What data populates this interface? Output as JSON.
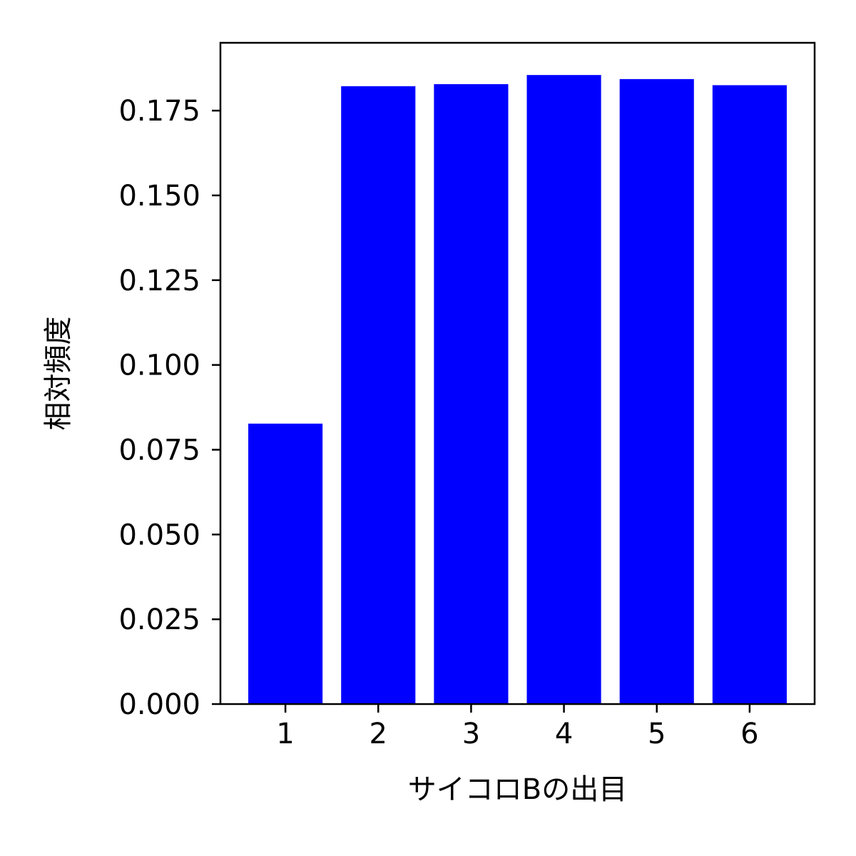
{
  "chart_data": {
    "type": "bar",
    "title": "",
    "xlabel": "サイコロBの出目",
    "ylabel": "相対頻度",
    "categories": [
      "1",
      "2",
      "3",
      "4",
      "5",
      "6"
    ],
    "values": [
      0.0827,
      0.1822,
      0.1828,
      0.1855,
      0.1843,
      0.1825
    ],
    "ylim": [
      0,
      0.195
    ],
    "yticks": [
      0.0,
      0.025,
      0.05,
      0.075,
      0.1,
      0.125,
      0.15,
      0.175
    ],
    "ytick_labels": [
      "0.000",
      "0.025",
      "0.050",
      "0.075",
      "0.100",
      "0.125",
      "0.150",
      "0.175"
    ],
    "grid": false,
    "bar_color": "#0000ff"
  }
}
